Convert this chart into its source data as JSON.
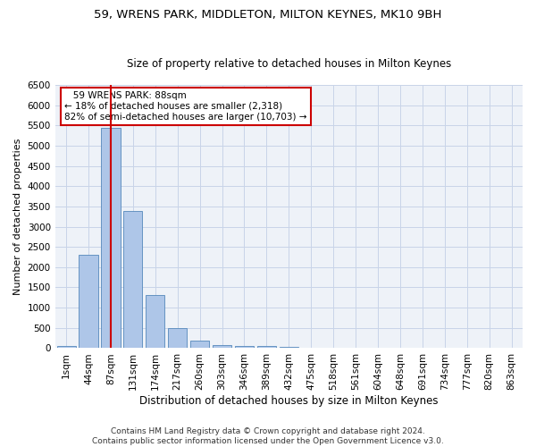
{
  "title": "59, WRENS PARK, MIDDLETON, MILTON KEYNES, MK10 9BH",
  "subtitle": "Size of property relative to detached houses in Milton Keynes",
  "xlabel": "Distribution of detached houses by size in Milton Keynes",
  "ylabel": "Number of detached properties",
  "footer_line1": "Contains HM Land Registry data © Crown copyright and database right 2024.",
  "footer_line2": "Contains public sector information licensed under the Open Government Licence v3.0.",
  "categories": [
    "1sqm",
    "44sqm",
    "87sqm",
    "131sqm",
    "174sqm",
    "217sqm",
    "260sqm",
    "303sqm",
    "346sqm",
    "389sqm",
    "432sqm",
    "475sqm",
    "518sqm",
    "561sqm",
    "604sqm",
    "648sqm",
    "691sqm",
    "734sqm",
    "777sqm",
    "820sqm",
    "863sqm"
  ],
  "values": [
    55,
    2310,
    5450,
    3380,
    1320,
    490,
    195,
    85,
    55,
    50,
    30,
    15,
    5,
    5,
    5,
    2,
    2,
    2,
    1,
    1,
    1
  ],
  "bar_color": "#aec6e8",
  "bar_edge_color": "#5588bb",
  "red_line_index": 2,
  "annotation_text_line1": "   59 WRENS PARK: 88sqm",
  "annotation_text_line2": "← 18% of detached houses are smaller (2,318)",
  "annotation_text_line3": "82% of semi-detached houses are larger (10,703) →",
  "annotation_box_color": "#ffffff",
  "annotation_box_edge_color": "#cc0000",
  "red_line_color": "#cc0000",
  "grid_color": "#c8d4e8",
  "bg_color": "#eef2f8",
  "ylim": [
    0,
    6500
  ],
  "yticks": [
    0,
    500,
    1000,
    1500,
    2000,
    2500,
    3000,
    3500,
    4000,
    4500,
    5000,
    5500,
    6000,
    6500
  ],
  "title_fontsize": 9.5,
  "subtitle_fontsize": 8.5,
  "xlabel_fontsize": 8.5,
  "ylabel_fontsize": 8,
  "tick_fontsize": 7.5,
  "annotation_fontsize": 7.5,
  "footer_fontsize": 6.5
}
